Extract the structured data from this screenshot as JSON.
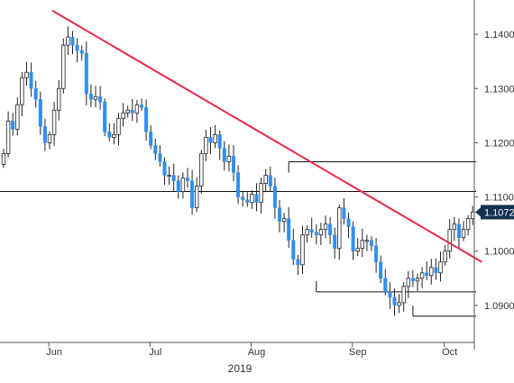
{
  "colors": {
    "up_candle": "#ffffff",
    "down_candle": "#2f8ff0",
    "wick": "#222222",
    "trend_line": "#e8294a",
    "level_line": "#111111",
    "last_price_bg": "#14304f",
    "last_price_text": "#ffffff",
    "axis_text": "#333333"
  },
  "chart_data": {
    "type": "candlestick",
    "title": "",
    "xlabel": "2019",
    "ylabel": "",
    "ylim": [
      1.0835,
      1.1455
    ],
    "grid": false,
    "legend": "none",
    "y_ticks": [
      "1.1400",
      "1.1300",
      "1.1200",
      "1.1100",
      "1.1000",
      "1.0900"
    ],
    "x_ticks": [
      {
        "label": "Jun",
        "index": 11
      },
      {
        "label": "Jul",
        "index": 33
      },
      {
        "label": "Aug",
        "index": 55
      },
      {
        "label": "Sep",
        "index": 77
      },
      {
        "label": "Oct",
        "index": 97
      }
    ],
    "last_price": "1.1072",
    "trend_line": {
      "from": {
        "index": 10,
        "price": 1.144
      },
      "to": {
        "index": 104,
        "price": 1.098
      }
    },
    "levels": [
      {
        "name": "resistance",
        "price": 1.111,
        "from_index": 0,
        "to_index": 104
      },
      {
        "name": "upper-bracket",
        "price": 1.1165,
        "from_index": 62,
        "to_index": 104,
        "end_tick": true
      },
      {
        "name": "lower-bracket",
        "price": 1.0925,
        "from_index": 68,
        "to_index": 104,
        "end_tick": true
      },
      {
        "name": "bottom-bracket",
        "price": 1.088,
        "from_index": 89,
        "to_index": 104,
        "end_tick": true
      }
    ],
    "closes": [
      1.118,
      1.124,
      1.1225,
      1.127,
      1.132,
      1.133,
      1.13,
      1.128,
      1.123,
      1.12,
      1.1215,
      1.126,
      1.13,
      1.138,
      1.1395,
      1.138,
      1.137,
      1.1365,
      1.129,
      1.128,
      1.1285,
      1.1275,
      1.122,
      1.121,
      1.1215,
      1.1245,
      1.1255,
      1.126,
      1.1255,
      1.127,
      1.1265,
      1.122,
      1.1195,
      1.118,
      1.1165,
      1.114,
      1.114,
      1.113,
      1.111,
      1.1135,
      1.113,
      1.108,
      1.112,
      1.118,
      1.121,
      1.12,
      1.1215,
      1.119,
      1.1165,
      1.1175,
      1.1145,
      1.11,
      1.1095,
      1.109,
      1.1105,
      1.109,
      1.1125,
      1.114,
      1.112,
      1.108,
      1.1055,
      1.106,
      1.102,
      1.0985,
      1.0975,
      1.103,
      1.104,
      1.1035,
      1.103,
      1.104,
      1.105,
      1.103,
      1.1005,
      1.108,
      1.106,
      1.1045,
      1.1,
      1.1005,
      1.102,
      1.102,
      1.101,
      1.098,
      1.095,
      1.0925,
      1.0915,
      1.09,
      1.0905,
      1.0935,
      1.095,
      1.0945,
      1.095,
      1.096,
      1.0955,
      1.097,
      1.096,
      1.098,
      1.1,
      1.104,
      1.105,
      1.1025,
      1.104,
      1.106,
      1.1072
    ]
  }
}
